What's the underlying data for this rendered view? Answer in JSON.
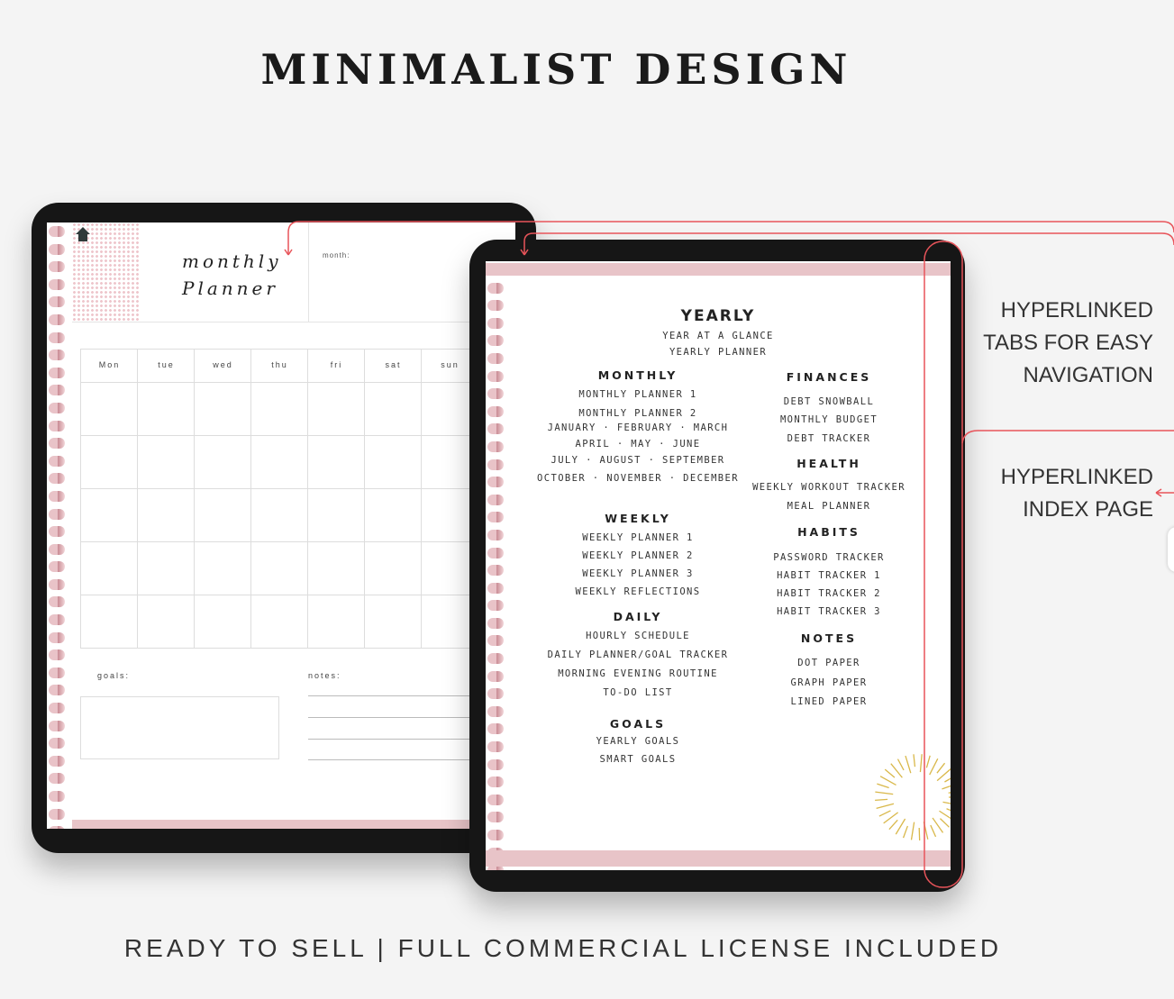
{
  "title": "MINIMALIST DESIGN",
  "footer": "READY TO SELL | FULL COMMERCIAL LICENSE INCLUDED",
  "callouts": {
    "tabs": [
      "HYPERLINKED",
      "TABS FOR EASY",
      "NAVIGATION"
    ],
    "index": [
      "HYPERLINKED",
      "INDEX PAGE"
    ]
  },
  "colors": {
    "accent": "#e8545a",
    "pink": "#e8c4c8",
    "sun": "#d9b84a"
  },
  "monthly_page": {
    "title_line1": "monthly",
    "title_line2": "Planner",
    "month_label": "month:",
    "days": [
      "Mon",
      "tue",
      "wed",
      "thu",
      "fri",
      "sat",
      "sun"
    ],
    "goals_label": "goals:",
    "notes_label": "notes:"
  },
  "index_page": {
    "yearly": {
      "heading": "YEARLY",
      "items": [
        "YEAR AT A GLANCE",
        "YEARLY PLANNER"
      ]
    },
    "monthly": {
      "heading": "MONTHLY",
      "items": [
        "MONTHLY PLANNER 1",
        "MONTHLY PLANNER 2",
        "JANUARY · FEBRUARY · MARCH",
        "APRIL · MAY · JUNE",
        "JULY · AUGUST · SEPTEMBER",
        "OCTOBER · NOVEMBER · DECEMBER"
      ]
    },
    "weekly": {
      "heading": "WEEKLY",
      "items": [
        "WEEKLY PLANNER 1",
        "WEEKLY PLANNER 2",
        "WEEKLY PLANNER 3",
        "WEEKLY REFLECTIONS"
      ]
    },
    "daily": {
      "heading": "DAILY",
      "items": [
        "HOURLY SCHEDULE",
        "DAILY PLANNER/GOAL TRACKER",
        "MORNING EVENING ROUTINE",
        "TO-DO LIST"
      ]
    },
    "goals": {
      "heading": "GOALS",
      "items": [
        "YEARLY GOALS",
        "SMART GOALS"
      ]
    },
    "finances": {
      "heading": "FINANCES",
      "items": [
        "DEBT SNOWBALL",
        "MONTHLY BUDGET",
        "DEBT TRACKER"
      ]
    },
    "health": {
      "heading": "HEALTH",
      "items": [
        "WEEKLY WORKOUT TRACKER",
        "MEAL PLANNER"
      ]
    },
    "habits": {
      "heading": "HABITS",
      "items": [
        "PASSWORD TRACKER",
        "HABIT TRACKER 1",
        "HABIT TRACKER 2",
        "HABIT TRACKER 3"
      ]
    },
    "notes": {
      "heading": "NOTES",
      "items": [
        "DOT PAPER",
        "GRAPH PAPER",
        "LINED PAPER"
      ]
    }
  }
}
